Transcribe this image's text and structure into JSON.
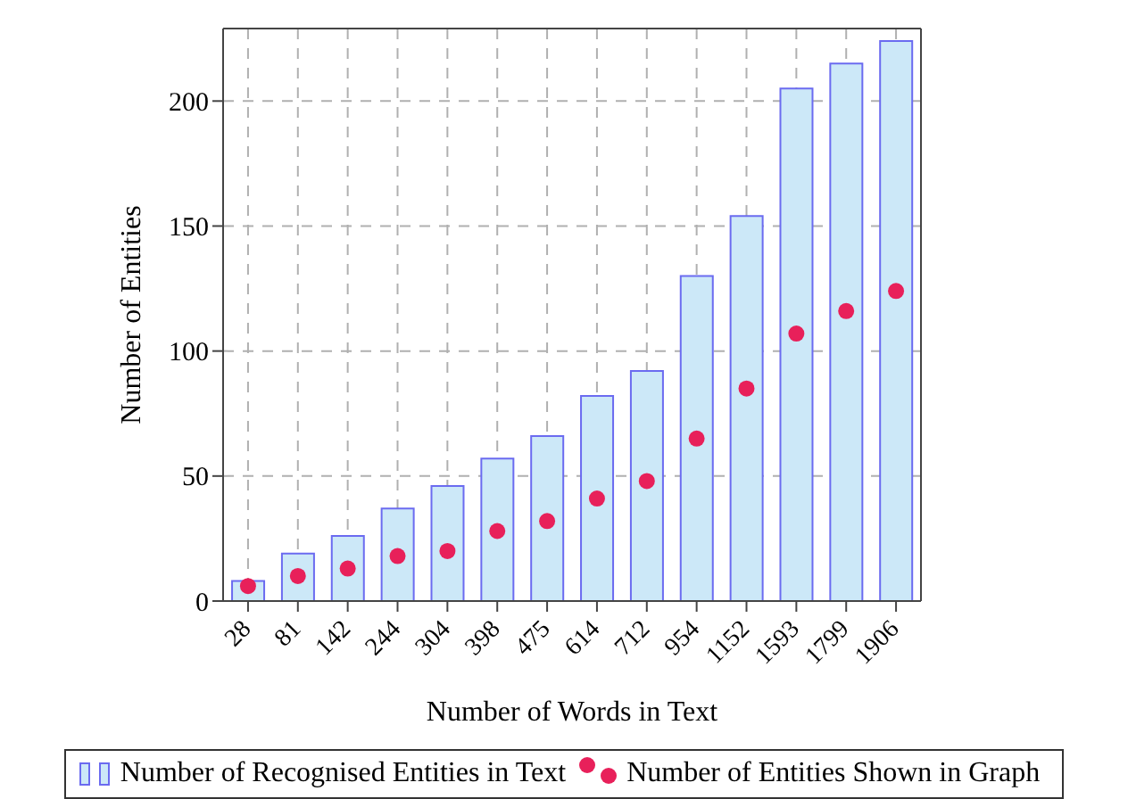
{
  "chart_data": {
    "type": "bar",
    "xlabel": "Number of Words in Text",
    "ylabel": "Number of Entities",
    "categories": [
      "28",
      "81",
      "142",
      "244",
      "304",
      "398",
      "475",
      "614",
      "712",
      "954",
      "1152",
      "1593",
      "1799",
      "1906"
    ],
    "series": [
      {
        "name": "Number of Recognised Entities in Text",
        "color": "#cce8f8",
        "values": [
          8,
          19,
          26,
          37,
          46,
          57,
          66,
          82,
          92,
          130,
          154,
          205,
          215,
          224
        ]
      },
      {
        "name": "Number of Entities Shown in Graph",
        "type": "scatter",
        "color": "#e8205a",
        "values": [
          6,
          10,
          13,
          18,
          20,
          28,
          32,
          41,
          48,
          65,
          85,
          107,
          116,
          124
        ]
      }
    ],
    "ylim": [
      0,
      229
    ],
    "yticks": [
      0,
      50,
      100,
      150,
      200
    ],
    "grid": true,
    "legend": "bottom",
    "marker": "circle"
  }
}
